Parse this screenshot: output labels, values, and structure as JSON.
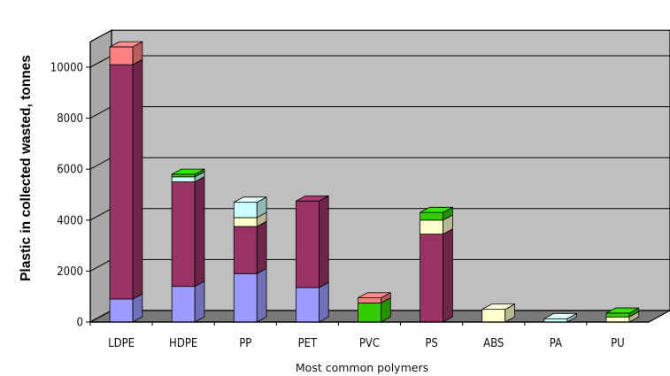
{
  "chart_data": {
    "type": "bar",
    "stacked": true,
    "three_d": true,
    "title": "",
    "xlabel": "Most common polymers",
    "ylabel": "Plastic in collected wasted, tonnes",
    "ylim": [
      0,
      11000
    ],
    "yticks": [
      0,
      2000,
      4000,
      6000,
      8000,
      10000
    ],
    "ytick_labels": [
      "0",
      "2000",
      "4000",
      "6000",
      "8000",
      "10000"
    ],
    "grid": true,
    "legend": "none",
    "categories": [
      "LDPE",
      "HDPE",
      "PP",
      "PET",
      "PVC",
      "PS",
      "ABS",
      "PA",
      "PU"
    ],
    "series": [
      {
        "color": "#9c9cff",
        "values": [
          900,
          1400,
          1900,
          1350,
          0,
          0,
          0,
          0,
          0
        ]
      },
      {
        "color": "#993366",
        "values": [
          9200,
          4100,
          1850,
          3400,
          0,
          3450,
          0,
          0,
          0
        ]
      },
      {
        "color": "#ffffcc",
        "values": [
          0,
          0,
          350,
          0,
          0,
          550,
          500,
          0,
          200
        ]
      },
      {
        "color": "#ccffff",
        "values": [
          0,
          200,
          600,
          0,
          0,
          0,
          0,
          130,
          0
        ]
      },
      {
        "color": "#33cc00",
        "values": [
          0,
          100,
          0,
          0,
          750,
          300,
          0,
          0,
          150
        ]
      },
      {
        "color": "#ff8080",
        "values": [
          700,
          0,
          0,
          0,
          200,
          0,
          0,
          0,
          0
        ]
      }
    ]
  }
}
